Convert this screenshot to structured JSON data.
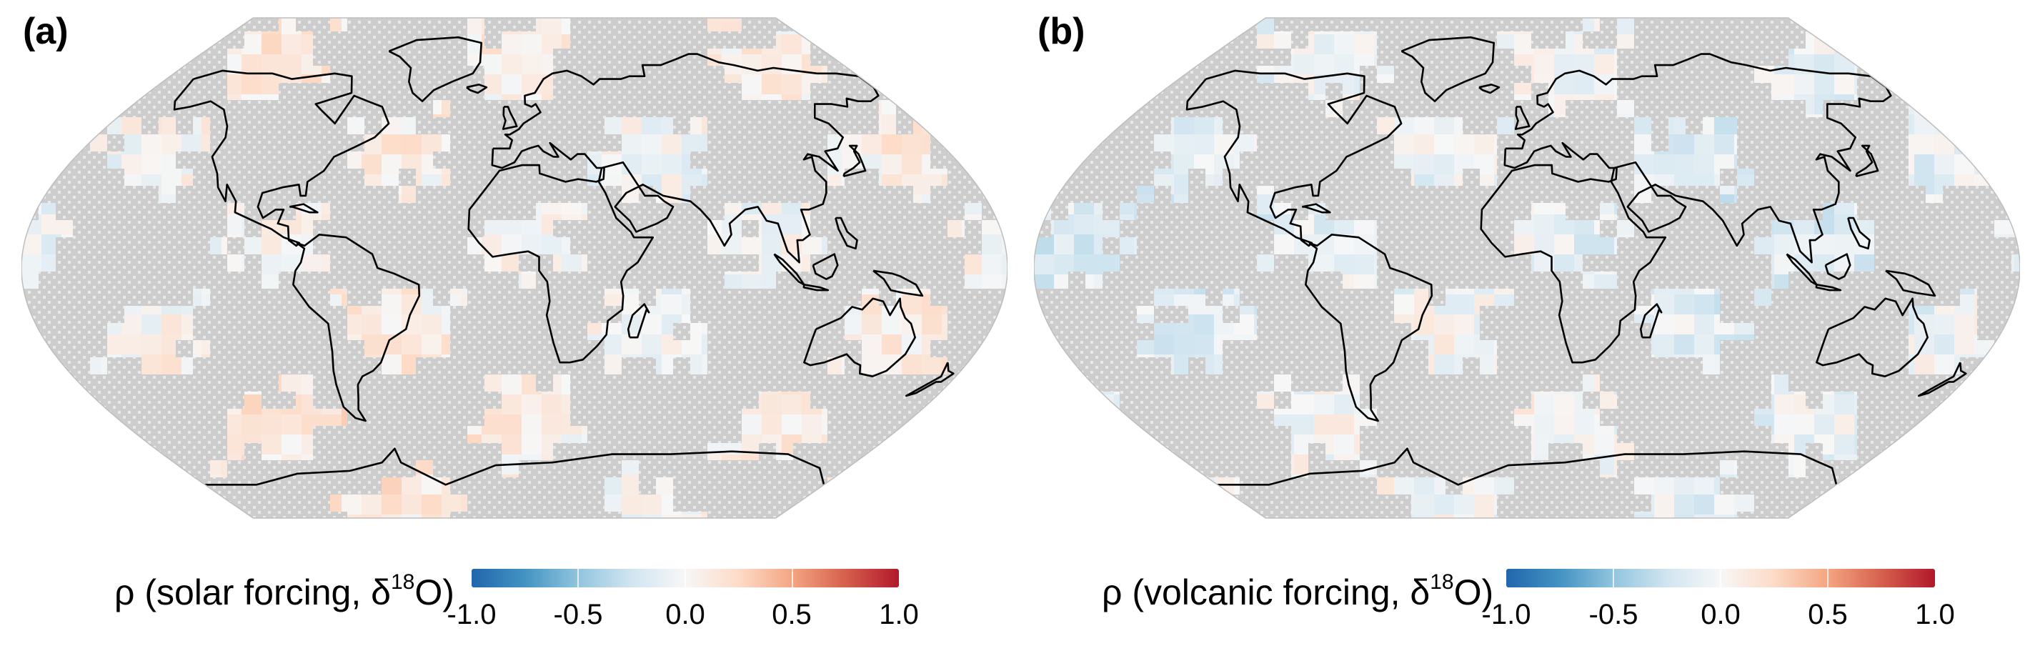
{
  "panels": [
    {
      "label": "(a)",
      "colorbar_label_prefix": "ρ (solar forcing, δ",
      "colorbar_label_sup": "18",
      "colorbar_label_suffix": "O)",
      "field_bias": 0.05
    },
    {
      "label": "(b)",
      "colorbar_label_prefix": "ρ (volcanic forcing, δ",
      "colorbar_label_sup": "18",
      "colorbar_label_suffix": "O)",
      "field_bias": -0.08
    }
  ],
  "colorbar": {
    "ticks": [
      "-1.0",
      "-0.5",
      "0.0",
      "0.5",
      "1.0"
    ],
    "range": [
      -1.0,
      1.0
    ],
    "colors": [
      "#2166ac",
      "#4393c3",
      "#92c5de",
      "#d1e5f0",
      "#f7f7f7",
      "#fddbc7",
      "#f4a582",
      "#d6604d",
      "#b2182b"
    ]
  },
  "map": {
    "projection": "Robinson",
    "stippled_color": "#c8c8c8",
    "coastline_color": "#000000"
  }
}
